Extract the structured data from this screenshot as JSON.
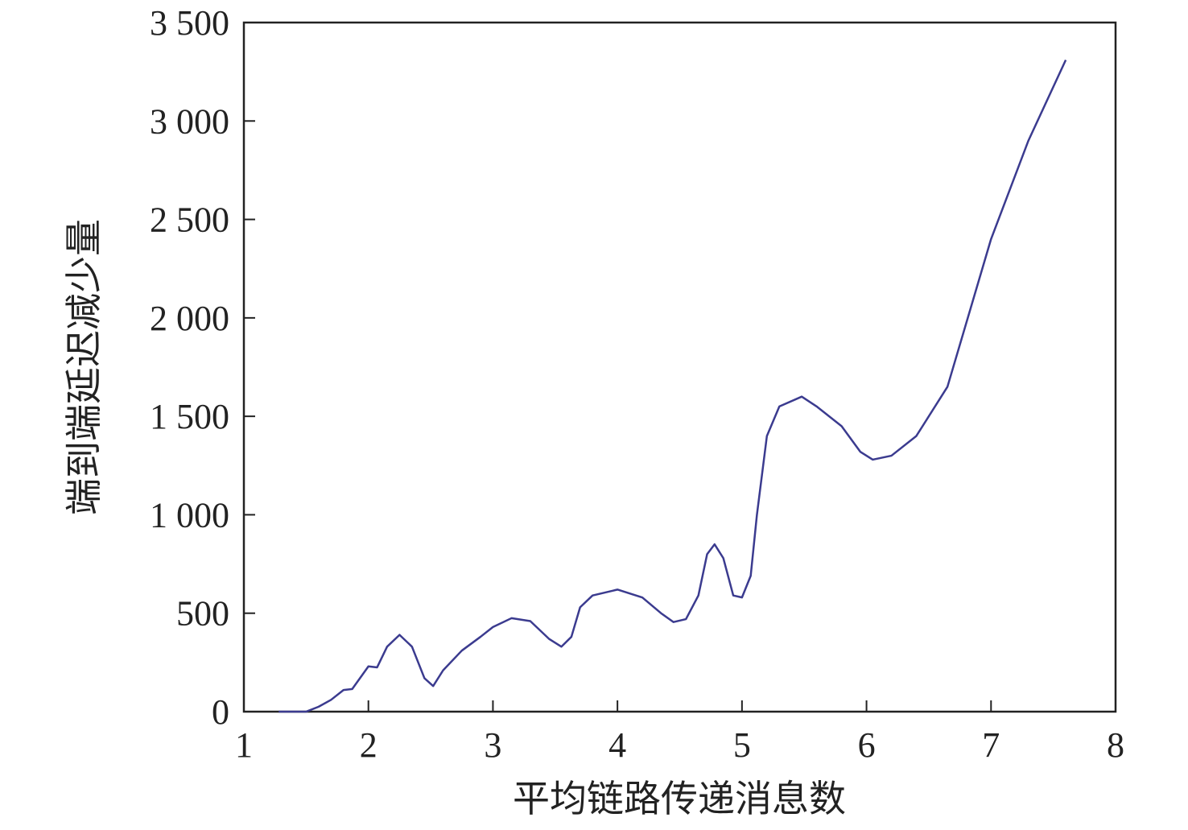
{
  "chart_data": {
    "type": "line",
    "x_label": "平均链路传递消息数",
    "y_label": "端到端延迟减少量",
    "xlim": [
      1,
      8
    ],
    "xticks": [
      1,
      2,
      3,
      4,
      5,
      6,
      7,
      8
    ],
    "ylim": [
      0,
      3500
    ],
    "yticks": [
      0,
      500,
      {
        "value": 1000,
        "label": "1 000"
      },
      {
        "value": 1500,
        "label": "1 500"
      },
      {
        "value": 2000,
        "label": "2 000"
      },
      {
        "value": 2500,
        "label": "2 500"
      },
      {
        "value": 3000,
        "label": "3 000"
      },
      {
        "value": 3500,
        "label": "3 500"
      }
    ],
    "series": [
      {
        "color": "#3b3b8f",
        "x": [
          1.28,
          1.5,
          1.6,
          1.7,
          1.8,
          1.87,
          2.0,
          2.07,
          2.15,
          2.25,
          2.35,
          2.45,
          2.52,
          2.6,
          2.75,
          2.9,
          3.0,
          3.15,
          3.3,
          3.45,
          3.55,
          3.63,
          3.7,
          3.8,
          4.0,
          4.2,
          4.35,
          4.45,
          4.55,
          4.65,
          4.72,
          4.78,
          4.85,
          4.93,
          5.0,
          5.07,
          5.12,
          5.2,
          5.3,
          5.48,
          5.6,
          5.8,
          5.95,
          6.05,
          6.2,
          6.4,
          6.6,
          6.65,
          7.0,
          7.3,
          7.6
        ],
        "values": [
          0,
          0,
          25,
          60,
          110,
          115,
          230,
          225,
          330,
          390,
          330,
          170,
          130,
          210,
          310,
          380,
          430,
          475,
          460,
          370,
          330,
          380,
          530,
          590,
          620,
          580,
          500,
          455,
          470,
          590,
          800,
          850,
          780,
          590,
          580,
          690,
          1000,
          1400,
          1550,
          1600,
          1550,
          1450,
          1320,
          1280,
          1300,
          1400,
          1600,
          1650,
          2400,
          2900,
          3310
        ]
      }
    ]
  }
}
